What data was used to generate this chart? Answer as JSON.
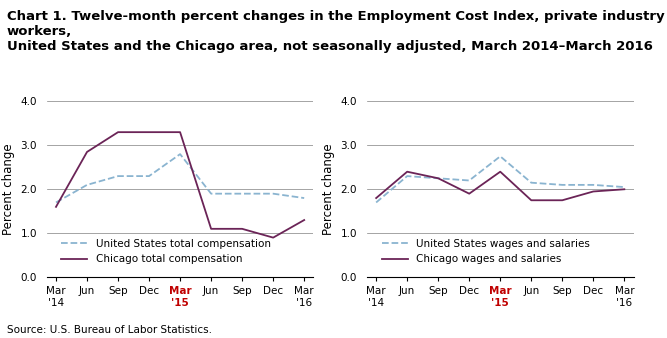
{
  "title": "Chart 1. Twelve-month percent changes in the Employment Cost Index, private industry workers,\nUnited States and the Chicago area, not seasonally adjusted, March 2014–March 2016",
  "source": "Source: U.S. Bureau of Labor Statistics.",
  "x_labels": [
    "Mar\n'14",
    "Jun",
    "Sep",
    "Dec",
    "Mar\n'15",
    "Jun",
    "Sep",
    "Dec",
    "Mar\n'16"
  ],
  "x_tick_labels": [
    "Mar\n'14",
    "Jun",
    "Sep",
    "Dec",
    "Mar\n'15",
    "Jun",
    "Sep",
    "Dec",
    "Mar\n'16"
  ],
  "ylabel": "Percent change",
  "ylim": [
    0.0,
    4.0
  ],
  "yticks": [
    0.0,
    1.0,
    2.0,
    3.0,
    4.0
  ],
  "left_us": [
    1.7,
    2.1,
    2.3,
    2.3,
    2.8,
    1.9,
    1.9,
    1.9,
    1.8
  ],
  "left_chicago": [
    1.6,
    2.85,
    3.3,
    3.3,
    3.3,
    1.1,
    1.1,
    0.9,
    1.3
  ],
  "right_us": [
    1.7,
    2.3,
    2.25,
    2.2,
    2.75,
    2.15,
    2.1,
    2.1,
    2.05
  ],
  "right_chicago": [
    1.8,
    2.4,
    2.25,
    1.9,
    2.4,
    1.75,
    1.75,
    1.95,
    2.0
  ],
  "us_color": "#92BFDB",
  "chicago_color": "#6B2D6B",
  "left_legend_us": "United States total compensation",
  "left_legend_chicago": "Chicago total compensation",
  "right_legend_us": "United States wages and salaries",
  "right_legend_chicago": "Chicago wages and salaries",
  "title_fontsize": 9.5,
  "label_fontsize": 8.5,
  "tick_fontsize": 7.5,
  "source_fontsize": 7.5,
  "legend_fontsize": 7.5
}
